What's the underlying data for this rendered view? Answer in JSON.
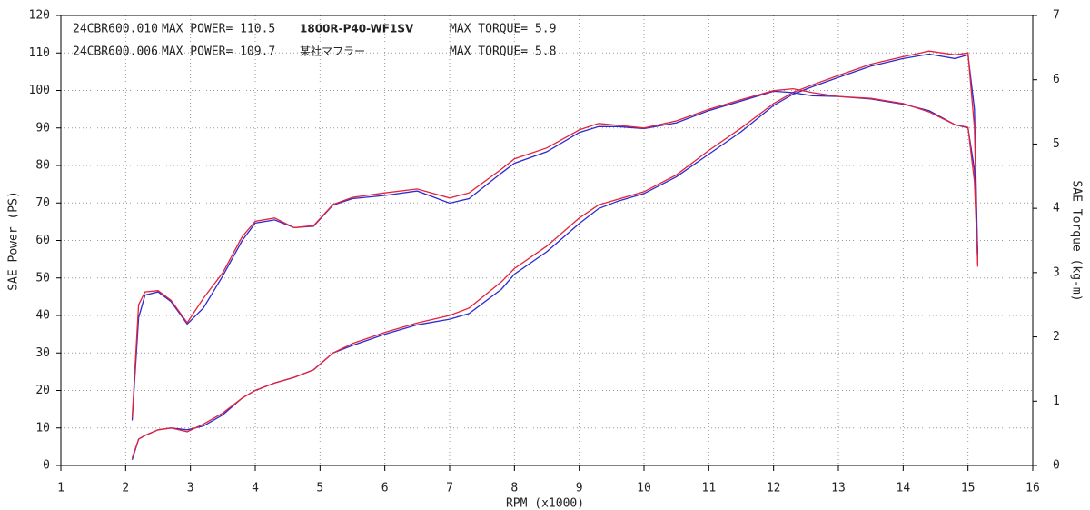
{
  "chart_data": {
    "type": "line",
    "xlabel": "RPM (x1000)",
    "ylabel": "SAE Power (PS)",
    "y2label": "SAE Torque (kg-m)",
    "xlim": [
      1,
      16
    ],
    "xticks": [
      1,
      2,
      3,
      4,
      5,
      6,
      7,
      8,
      9,
      10,
      11,
      12,
      13,
      14,
      15,
      16
    ],
    "ylim": [
      0,
      120
    ],
    "yticks": [
      0,
      10,
      20,
      30,
      40,
      50,
      60,
      70,
      80,
      90,
      100,
      110,
      120
    ],
    "y2lim": [
      0,
      7
    ],
    "y2ticks": [
      0,
      1,
      2,
      3,
      4,
      5,
      6,
      7
    ],
    "grid": true,
    "annotations": [
      {
        "file": "24CBR600.010",
        "max_power": "MAX POWER= 110.5",
        "label": "1800R-P40-WF1SV",
        "max_torque": "MAX TORQUE= 5.9",
        "color": "#e5223a",
        "bold_label": true
      },
      {
        "file": "24CBR600.006",
        "max_power": "MAX POWER= 109.7",
        "label": "某社マフラー",
        "max_torque": "MAX TORQUE= 5.8",
        "color": "#2a2ad0",
        "bold_label": false
      }
    ],
    "x": [
      2.1,
      2.2,
      2.3,
      2.5,
      2.7,
      2.95,
      3.2,
      3.5,
      3.8,
      4.0,
      4.3,
      4.6,
      4.9,
      5.2,
      5.5,
      6.0,
      6.5,
      7.0,
      7.3,
      7.8,
      8.0,
      8.5,
      9.0,
      9.3,
      9.6,
      10.0,
      10.5,
      11.0,
      11.5,
      12.0,
      12.3,
      12.6,
      13.0,
      13.5,
      14.0,
      14.4,
      14.8,
      15.0,
      15.1,
      15.15
    ],
    "series": [
      {
        "color": "#2a2ad0",
        "axis": "y",
        "values": [
          1.5,
          7,
          8,
          9.5,
          10,
          9.5,
          10.5,
          13.5,
          18,
          20,
          22,
          23.5,
          25.5,
          30,
          32,
          35,
          37.5,
          39,
          40.5,
          47,
          51,
          57,
          64.5,
          68.5,
          70.5,
          72.5,
          77,
          83,
          89,
          96,
          99,
          101,
          103.5,
          106.5,
          108.5,
          109.7,
          108.5,
          109.5,
          95,
          55
        ]
      },
      {
        "color": "#e5223a",
        "axis": "y",
        "values": [
          2,
          7,
          8,
          9.5,
          10,
          9,
          11,
          14,
          18,
          20,
          22,
          23.5,
          25.5,
          30,
          32.5,
          35.5,
          38,
          40,
          42,
          49,
          52.5,
          58.5,
          66,
          69.5,
          71,
          73,
          77.5,
          84,
          90,
          96.5,
          99.5,
          101.5,
          104,
          107,
          109,
          110.5,
          109.5,
          110,
          90,
          53
        ]
      },
      {
        "color": "#2a2ad0",
        "axis": "y2",
        "values": [
          0.7,
          2.3,
          2.65,
          2.7,
          2.55,
          2.2,
          2.45,
          2.95,
          3.5,
          3.77,
          3.82,
          3.7,
          3.72,
          4.05,
          4.15,
          4.2,
          4.27,
          4.08,
          4.15,
          4.55,
          4.7,
          4.88,
          5.18,
          5.27,
          5.27,
          5.24,
          5.33,
          5.52,
          5.67,
          5.82,
          5.8,
          5.75,
          5.74,
          5.7,
          5.62,
          5.52,
          5.3,
          5.25,
          4.6,
          3.3
        ]
      },
      {
        "color": "#e5223a",
        "axis": "y2",
        "values": [
          0.74,
          2.5,
          2.7,
          2.72,
          2.57,
          2.22,
          2.6,
          3.0,
          3.56,
          3.8,
          3.85,
          3.7,
          3.73,
          4.06,
          4.17,
          4.24,
          4.3,
          4.16,
          4.24,
          4.61,
          4.77,
          4.94,
          5.22,
          5.32,
          5.29,
          5.25,
          5.36,
          5.54,
          5.69,
          5.83,
          5.86,
          5.8,
          5.74,
          5.71,
          5.63,
          5.5,
          5.3,
          5.26,
          4.41,
          3.14
        ]
      }
    ]
  }
}
